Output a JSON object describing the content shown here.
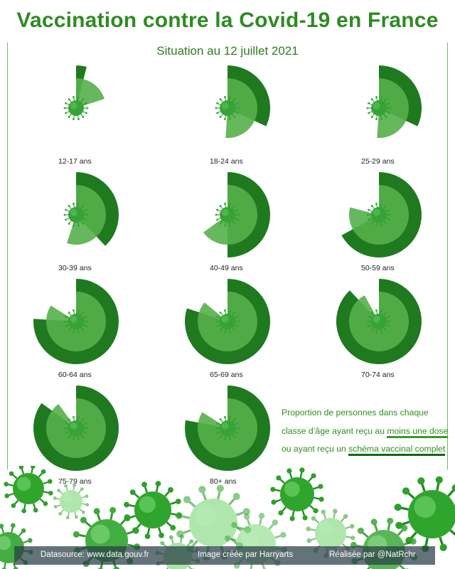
{
  "header": {
    "title": "Vaccination contre la Covid-19 en France",
    "subtitle": "Situation au 12 juillet 2021"
  },
  "legend": {
    "line1": "Proportion de personnes dans chaque",
    "line2_prefix": "classe d’âge ayant reçu au ",
    "line2_highlight": "moins une dose",
    "line3_prefix": "ou ayant reçu un ",
    "line3_highlight": "schéma vaccinal complet"
  },
  "footer": {
    "source": "Datasource: www.data.gouv.fr",
    "image_credit": "Image créée par Harryarts",
    "author": "Réalisée par @NatRchr"
  },
  "colors": {
    "title": "#2e8b22",
    "one_dose": "#55b04a",
    "complete": "#1f7a1f",
    "background_ring": "#2f9a34"
  },
  "chart_data": {
    "type": "radial-bar",
    "series": [
      {
        "name": "moins une dose"
      },
      {
        "name": "schéma vaccinal complet"
      }
    ],
    "groups": [
      {
        "label": "12-17 ans",
        "one_dose": 20,
        "complete": 4
      },
      {
        "label": "18-24 ans",
        "one_dose": 51,
        "complete": 32
      },
      {
        "label": "25-29 ans",
        "one_dose": 51,
        "complete": 32
      },
      {
        "label": "30-39 ans",
        "one_dose": 55,
        "complete": 38
      },
      {
        "label": "40-49 ans",
        "one_dose": 65,
        "complete": 50
      },
      {
        "label": "50-59 ans",
        "one_dose": 79,
        "complete": 67
      },
      {
        "label": "60-64 ans",
        "one_dose": 84,
        "complete": 76
      },
      {
        "label": "65-69 ans",
        "one_dose": 86,
        "complete": 80
      },
      {
        "label": "70-74 ans",
        "one_dose": 92,
        "complete": 88
      },
      {
        "label": "75-79 ans",
        "one_dose": 90,
        "complete": 85
      },
      {
        "label": "80+ ans",
        "one_dose": 84,
        "complete": 78
      }
    ]
  }
}
